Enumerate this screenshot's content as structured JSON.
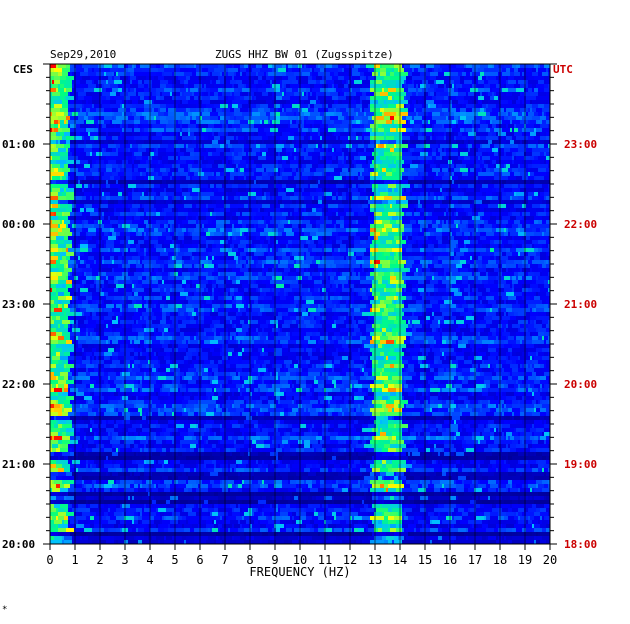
{
  "header": {
    "date": "Sep29,2010",
    "station": "ZUGS HHZ BW 01 (Zugsspitze)"
  },
  "left_axis": {
    "zone": "CES",
    "tick_labels": [
      "01:00",
      "00:00",
      "23:00",
      "22:00",
      "21:00",
      "20:00"
    ]
  },
  "right_axis": {
    "zone": "UTC",
    "tick_labels": [
      "23:00",
      "22:00",
      "21:00",
      "20:00",
      "19:00",
      "18:00"
    ]
  },
  "footer_mark": "*",
  "colors": {
    "axis_left": "#000000",
    "axis_right": "#cc0000"
  },
  "chart_data": {
    "type": "heatmap",
    "title": "ZUGS HHZ BW 01 (Zugsspitze)",
    "subtitle": "Sep29,2010",
    "xlabel": "FREQUENCY (HZ)",
    "xlim": [
      0,
      20
    ],
    "x_ticks": [
      0,
      1,
      2,
      3,
      4,
      5,
      6,
      7,
      8,
      9,
      10,
      11,
      12,
      13,
      14,
      15,
      16,
      17,
      18,
      19,
      20
    ],
    "y_axis_time_utc_range": [
      "18:00",
      "24:00"
    ],
    "bright_bands_hz": [
      [
        0,
        0.7
      ],
      [
        12.8,
        14.0
      ]
    ],
    "secondary_lines_hz": [
      9.0,
      16.0
    ],
    "quiet_time_bands_utc": [
      "19:05-19:10",
      "18:15-18:25"
    ],
    "colormap": [
      "#000080",
      "#0000ff",
      "#00c0ff",
      "#00ff80",
      "#ffff00",
      "#ff0000"
    ]
  }
}
